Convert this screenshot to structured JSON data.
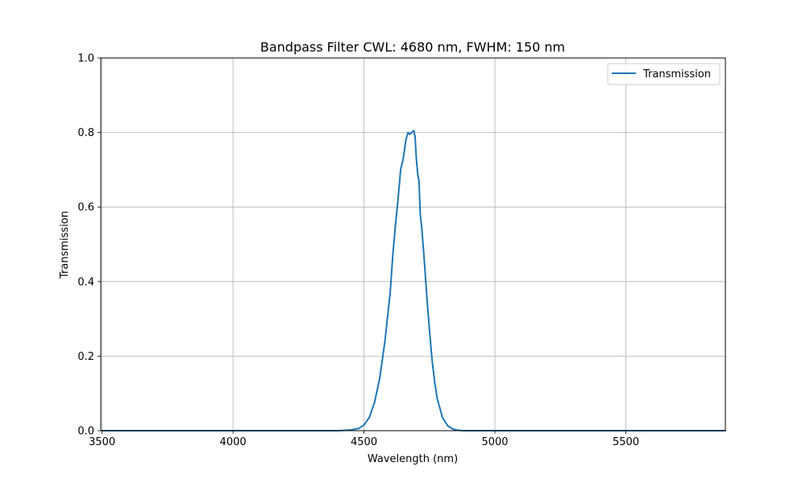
{
  "chart_data": {
    "type": "line",
    "title": "Bandpass Filter CWL: 4680 nm, FWHM: 150 nm",
    "xlabel": "Wavelength (nm)",
    "ylabel": "Transmission",
    "xlim": [
      3495,
      5880
    ],
    "ylim": [
      0,
      1
    ],
    "xticks": [
      3500,
      4000,
      4500,
      5000,
      5500
    ],
    "yticks": [
      0.0,
      0.2,
      0.4,
      0.6,
      0.8,
      1.0
    ],
    "xtick_labels": [
      "3500",
      "4000",
      "4500",
      "5000",
      "5500"
    ],
    "ytick_labels": [
      "0.0",
      "0.2",
      "0.4",
      "0.6",
      "0.8",
      "1.0"
    ],
    "grid": true,
    "legend_position": "top-right",
    "series": [
      {
        "name": "Transmission",
        "color": "#1f77b4",
        "x": [
          3500,
          4300,
          4400,
          4450,
          4480,
          4500,
          4520,
          4540,
          4560,
          4580,
          4600,
          4610,
          4615,
          4620,
          4630,
          4640,
          4650,
          4660,
          4668,
          4675,
          4682,
          4690,
          4695,
          4700,
          4705,
          4710,
          4715,
          4720,
          4730,
          4740,
          4750,
          4760,
          4770,
          4780,
          4800,
          4820,
          4840,
          4860,
          4880,
          4900,
          4950,
          5000,
          5500,
          5880
        ],
        "y": [
          0.0,
          0.0,
          0.0,
          0.002,
          0.006,
          0.015,
          0.035,
          0.075,
          0.14,
          0.24,
          0.37,
          0.47,
          0.51,
          0.55,
          0.62,
          0.7,
          0.73,
          0.78,
          0.8,
          0.795,
          0.8,
          0.805,
          0.79,
          0.73,
          0.69,
          0.67,
          0.58,
          0.55,
          0.46,
          0.36,
          0.27,
          0.19,
          0.13,
          0.085,
          0.035,
          0.013,
          0.004,
          0.001,
          0.0,
          0.0,
          0.0,
          0.0,
          0.0,
          0.0
        ]
      }
    ]
  }
}
